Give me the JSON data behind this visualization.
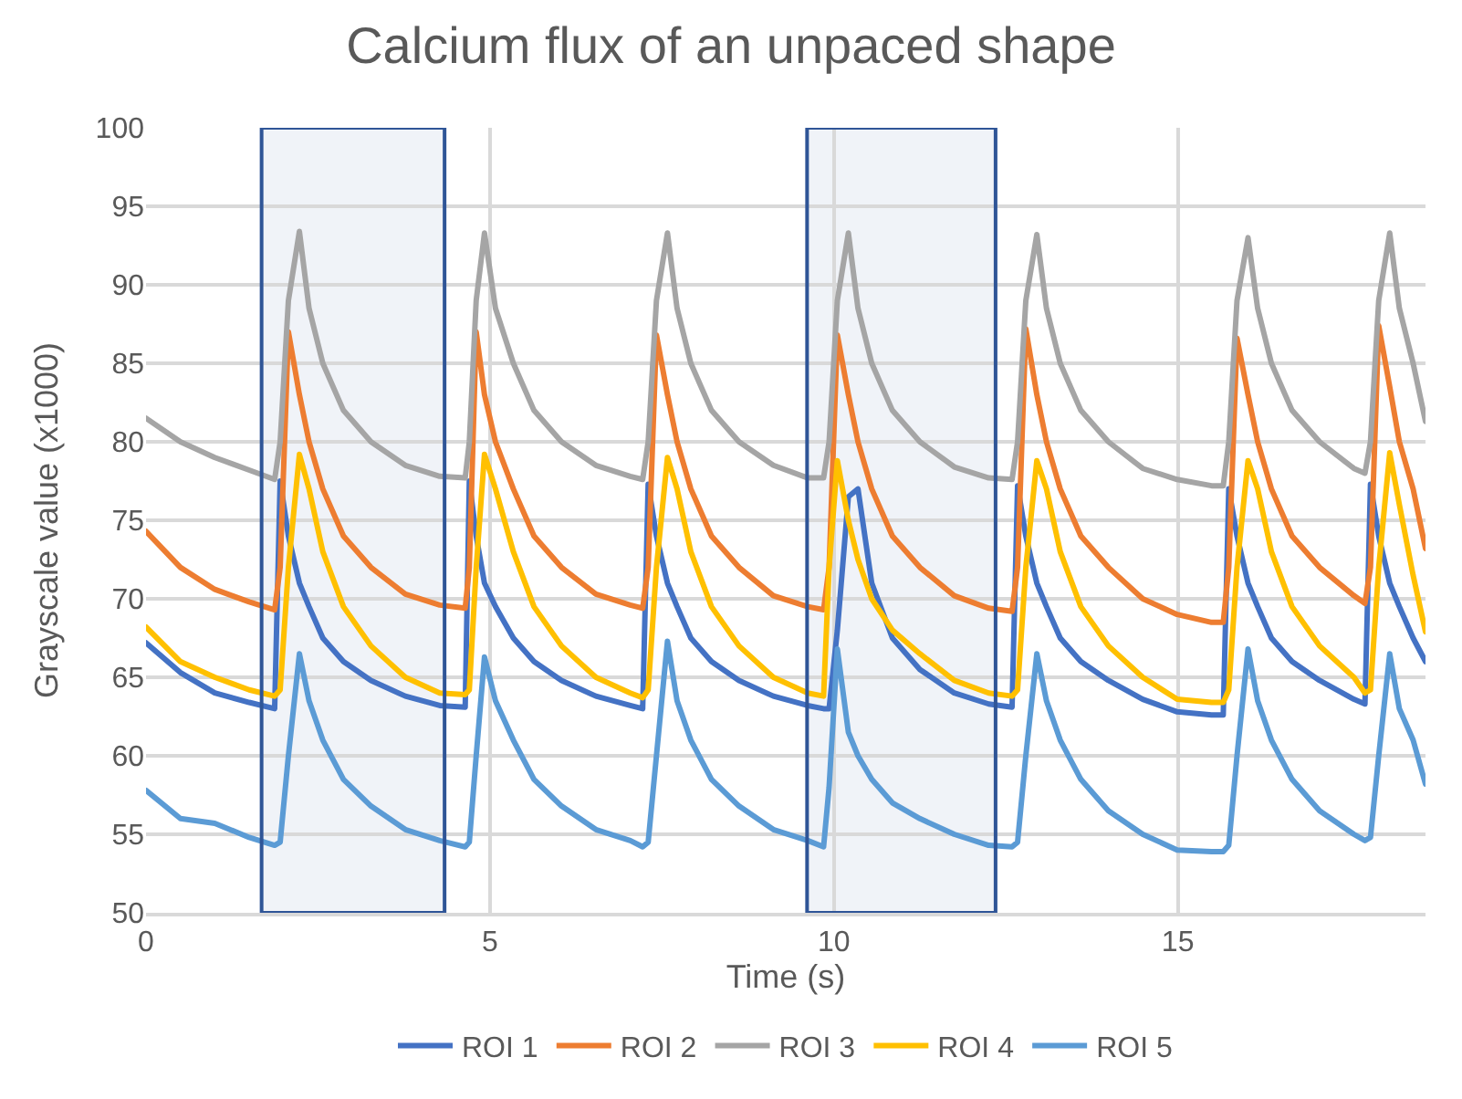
{
  "chart_data": {
    "type": "line",
    "title": "Calcium flux of an unpaced shape",
    "xlabel": "Time (s)",
    "ylabel": "Grayscale value (x1000)",
    "x": [
      0,
      0.5,
      1.0,
      1.5,
      1.87,
      1.95,
      2.07,
      2.23,
      2.37,
      2.57,
      2.87,
      3.27,
      3.77,
      4.27,
      4.64,
      4.7,
      4.8,
      4.92,
      5.08,
      5.34,
      5.64,
      6.04,
      6.54,
      7.04,
      7.22,
      7.3,
      7.42,
      7.58,
      7.72,
      7.92,
      8.22,
      8.62,
      9.12,
      9.62,
      9.85,
      9.93,
      10.05,
      10.21,
      10.35,
      10.55,
      10.85,
      11.25,
      11.75,
      12.25,
      12.59,
      12.67,
      12.79,
      12.95,
      13.09,
      13.29,
      13.59,
      13.99,
      14.49,
      14.99,
      15.49,
      15.66,
      15.74,
      15.86,
      16.02,
      16.16,
      16.36,
      16.66,
      17.06,
      17.56,
      17.72,
      17.8,
      17.92,
      18.08,
      18.22,
      18.42,
      18.6
    ],
    "series": [
      {
        "name": "ROI 1",
        "color": "#4472c4",
        "values": [
          67.2,
          65.3,
          64,
          63.4,
          63,
          77.5,
          74,
          71,
          69.5,
          67.5,
          66,
          64.8,
          63.8,
          63.2,
          63.1,
          77.5,
          74,
          71,
          69.5,
          67.5,
          66,
          64.8,
          63.8,
          63.2,
          63.0,
          77.3,
          74,
          71,
          69.5,
          67.5,
          66,
          64.8,
          63.8,
          63.2,
          63.0,
          63.0,
          68,
          76.5,
          77,
          71,
          67.5,
          65.5,
          64,
          63.3,
          63.1,
          77.2,
          74,
          71,
          69.5,
          67.5,
          66,
          64.8,
          63.6,
          62.8,
          62.6,
          62.6,
          77,
          74,
          71,
          69.5,
          67.5,
          66,
          64.8,
          63.6,
          63.3,
          77.3,
          74,
          71,
          69.5,
          67.5,
          66.0
        ]
      },
      {
        "name": "ROI 2",
        "color": "#ed7d31",
        "values": [
          74.3,
          72,
          70.6,
          69.8,
          69.3,
          72,
          87.0,
          83,
          80,
          77,
          74,
          72,
          70.3,
          69.6,
          69.4,
          72,
          87.0,
          83,
          80,
          77,
          74,
          72,
          70.3,
          69.6,
          69.4,
          72,
          86.8,
          83,
          80,
          77,
          74,
          72,
          70.2,
          69.5,
          69.3,
          72,
          86.8,
          83,
          80,
          77,
          74,
          72,
          70.2,
          69.4,
          69.2,
          72,
          87.2,
          83,
          80,
          77,
          74,
          72,
          70.0,
          69.0,
          68.5,
          68.5,
          72,
          86.6,
          83,
          80,
          77,
          74,
          72,
          70.2,
          69.7,
          72,
          87.4,
          83.5,
          80,
          77,
          73.2
        ]
      },
      {
        "name": "ROI 3",
        "color": "#a5a5a5",
        "values": [
          81.5,
          80,
          79,
          78.2,
          77.6,
          80,
          89,
          93.4,
          88.5,
          85,
          82,
          80,
          78.5,
          77.8,
          77.7,
          80,
          89,
          93.3,
          88.5,
          85,
          82,
          80,
          78.5,
          77.8,
          77.6,
          80,
          89,
          93.3,
          88.5,
          85,
          82,
          80,
          78.5,
          77.7,
          77.7,
          80,
          89,
          93.3,
          88.5,
          85,
          82,
          80,
          78.4,
          77.7,
          77.6,
          80,
          89,
          93.2,
          88.5,
          85,
          82,
          80,
          78.3,
          77.6,
          77.2,
          77.2,
          80,
          89,
          93.0,
          88.5,
          85,
          82,
          80,
          78.3,
          78.0,
          80,
          89,
          93.3,
          88.5,
          85,
          81.3
        ]
      },
      {
        "name": "ROI 4",
        "color": "#ffc000",
        "values": [
          68.2,
          66,
          65,
          64.2,
          63.8,
          64.2,
          72,
          79.2,
          77,
          73,
          69.5,
          67,
          65,
          64,
          63.9,
          64.2,
          72,
          79.2,
          77,
          73,
          69.5,
          67,
          65,
          64,
          63.7,
          64.2,
          72,
          79,
          77,
          73,
          69.5,
          67,
          65,
          64,
          63.8,
          72,
          78.8,
          75,
          72.5,
          70,
          68,
          66.5,
          64.8,
          64,
          63.8,
          64.2,
          72,
          78.8,
          77,
          73,
          69.5,
          67,
          65,
          63.6,
          63.4,
          63.4,
          64.2,
          72,
          78.8,
          77,
          73,
          69.5,
          67,
          65,
          64,
          64.2,
          72,
          79.3,
          76,
          71.5,
          67.9
        ]
      },
      {
        "name": "ROI 5",
        "color": "#5b9bd5",
        "values": [
          57.8,
          56,
          55.7,
          54.8,
          54.3,
          54.5,
          60,
          66.5,
          63.5,
          61,
          58.5,
          56.8,
          55.3,
          54.6,
          54.2,
          54.5,
          60,
          66.3,
          63.5,
          61,
          58.5,
          56.8,
          55.3,
          54.6,
          54.2,
          54.5,
          60,
          67.3,
          63.5,
          61,
          58.5,
          56.8,
          55.3,
          54.6,
          54.2,
          58,
          66.8,
          61.5,
          60,
          58.5,
          57,
          56,
          55,
          54.3,
          54.2,
          54.5,
          60,
          66.5,
          63.5,
          61,
          58.5,
          56.5,
          55,
          54,
          53.9,
          53.9,
          54.3,
          60,
          66.8,
          63.5,
          61,
          58.5,
          56.5,
          55,
          54.6,
          54.8,
          60,
          66.5,
          63,
          61,
          58.2
        ]
      }
    ],
    "xlim": [
      0,
      18.6
    ],
    "xticks": [
      0,
      5,
      10,
      15
    ],
    "ylim": [
      50,
      100
    ],
    "yticks": [
      50,
      55,
      60,
      65,
      70,
      75,
      80,
      85,
      90,
      95,
      100
    ],
    "bands": [
      {
        "axis": "x",
        "from": 1.68,
        "to": 4.34,
        "color": "#2f5597"
      },
      {
        "axis": "x",
        "from": 9.61,
        "to": 12.35,
        "color": "#2f5597"
      }
    ],
    "grid": true,
    "legend": "bottom",
    "marker": "none",
    "line_style": "solid"
  }
}
